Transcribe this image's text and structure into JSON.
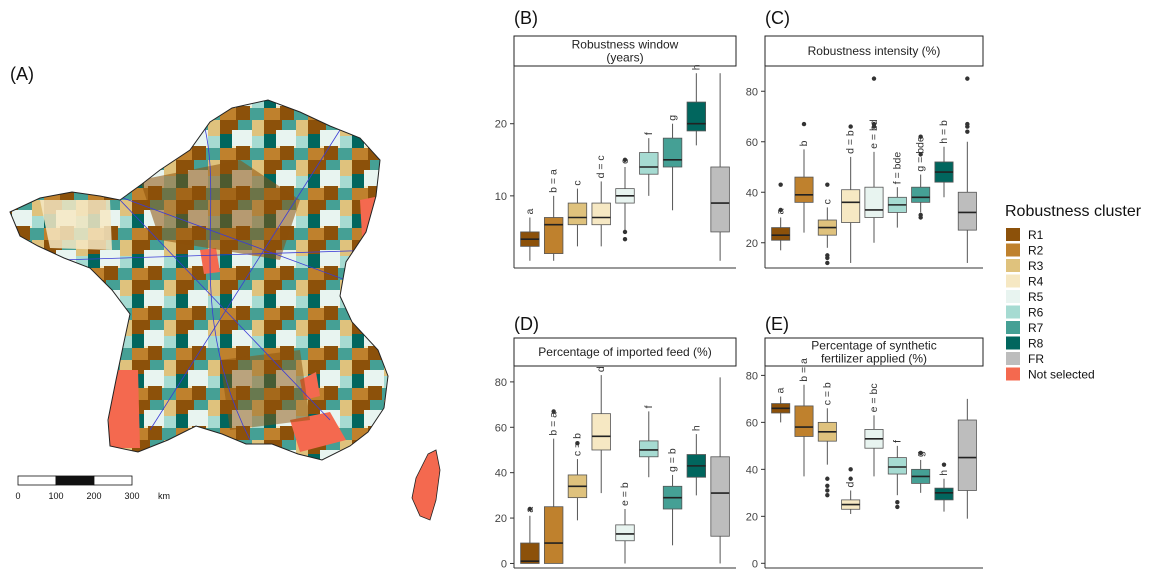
{
  "map_panel": {
    "letter": "(A)",
    "scale_ticks": [
      "0",
      "100",
      "200",
      "300"
    ],
    "scale_unit": "km"
  },
  "legend": {
    "title": "Robustness cluster",
    "items": [
      {
        "label": "R1",
        "color": "#8c510a"
      },
      {
        "label": "R2",
        "color": "#bf812d"
      },
      {
        "label": "R3",
        "color": "#dfc27d"
      },
      {
        "label": "R4",
        "color": "#f6e8c3"
      },
      {
        "label": "R5",
        "color": "#e8f4f0"
      },
      {
        "label": "R6",
        "color": "#a6dbd2"
      },
      {
        "label": "R7",
        "color": "#45a095"
      },
      {
        "label": "R8",
        "color": "#01665e"
      },
      {
        "label": "FR",
        "color": "#bdbdbd"
      },
      {
        "label": "Not selected",
        "color": "#f4694f"
      }
    ]
  },
  "chart_data": [
    {
      "type": "box",
      "panel": "(B)",
      "title_lines": [
        "Robustness window",
        "(years)"
      ],
      "ylim": [
        0,
        28
      ],
      "yticks": [
        10,
        20
      ],
      "categories": [
        "R1",
        "R2",
        "R3",
        "R4",
        "R5",
        "R6",
        "R7",
        "R8",
        "FR"
      ],
      "labels": [
        "a",
        "b = a",
        "c",
        "d = c",
        "e",
        "f",
        "g",
        "h",
        ""
      ],
      "boxes": [
        {
          "min": 1,
          "q1": 3,
          "median": 4,
          "q3": 5,
          "max": 7,
          "outliers": []
        },
        {
          "min": 1,
          "q1": 2,
          "median": 6,
          "q3": 7,
          "max": 10,
          "outliers": []
        },
        {
          "min": 3,
          "q1": 6,
          "median": 7,
          "q3": 9,
          "max": 11,
          "outliers": []
        },
        {
          "min": 3,
          "q1": 6,
          "median": 7,
          "q3": 9,
          "max": 12,
          "outliers": []
        },
        {
          "min": 5,
          "q1": 9,
          "median": 10,
          "q3": 11,
          "max": 14,
          "outliers": [
            4,
            5,
            15
          ]
        },
        {
          "min": 10,
          "q1": 13,
          "median": 14,
          "q3": 16,
          "max": 18,
          "outliers": []
        },
        {
          "min": 8,
          "q1": 14,
          "median": 15,
          "q3": 18,
          "max": 20,
          "outliers": []
        },
        {
          "min": 17,
          "q1": 19,
          "median": 20,
          "q3": 23,
          "max": 27,
          "outliers": []
        },
        {
          "min": 1,
          "q1": 5,
          "median": 9,
          "q3": 14,
          "max": 27,
          "outliers": []
        }
      ]
    },
    {
      "type": "box",
      "panel": "(C)",
      "title_lines": [
        "Robustness intensity (%)"
      ],
      "ylim": [
        10,
        90
      ],
      "yticks": [
        20,
        40,
        60,
        80
      ],
      "categories": [
        "R1",
        "R2",
        "R3",
        "R4",
        "R5",
        "R6",
        "R7",
        "R8",
        "FR"
      ],
      "labels": [
        "a",
        "b",
        "c",
        "d = b",
        "e = bd",
        "f = bde",
        "g = bde",
        "h = b",
        ""
      ],
      "boxes": [
        {
          "min": 17,
          "q1": 21,
          "median": 23,
          "q3": 26,
          "max": 30,
          "outliers": [
            33,
            43
          ]
        },
        {
          "min": 24,
          "q1": 36,
          "median": 39,
          "q3": 46,
          "max": 57,
          "outliers": [
            67
          ]
        },
        {
          "min": 18,
          "q1": 23,
          "median": 26,
          "q3": 29,
          "max": 34,
          "outliers": [
            12,
            14,
            15,
            43
          ]
        },
        {
          "min": 12,
          "q1": 28,
          "median": 36,
          "q3": 41,
          "max": 54,
          "outliers": [
            66
          ]
        },
        {
          "min": 20,
          "q1": 30,
          "median": 33,
          "q3": 42,
          "max": 56,
          "outliers": [
            66,
            67,
            85
          ]
        },
        {
          "min": 26,
          "q1": 32,
          "median": 35,
          "q3": 38,
          "max": 42,
          "outliers": []
        },
        {
          "min": 32,
          "q1": 36,
          "median": 38,
          "q3": 42,
          "max": 47,
          "outliers": [
            30,
            31,
            55,
            62
          ]
        },
        {
          "min": 38,
          "q1": 44,
          "median": 48,
          "q3": 52,
          "max": 58,
          "outliers": []
        },
        {
          "min": 12,
          "q1": 25,
          "median": 32,
          "q3": 40,
          "max": 60,
          "outliers": [
            64,
            66,
            67,
            85
          ]
        }
      ]
    },
    {
      "type": "box",
      "panel": "(D)",
      "title_lines": [
        "Percentage of imported feed (%)"
      ],
      "ylim": [
        -2,
        87
      ],
      "yticks": [
        0,
        20,
        40,
        60,
        80
      ],
      "categories": [
        "R1",
        "R2",
        "R3",
        "R4",
        "R5",
        "R6",
        "R7",
        "R8",
        "FR"
      ],
      "labels": [
        "a",
        "b = a",
        "c = b",
        "d",
        "e = b",
        "f",
        "g = b",
        "h",
        ""
      ],
      "boxes": [
        {
          "min": 0,
          "q1": 0,
          "median": 1,
          "q3": 9,
          "max": 21,
          "outliers": [
            24
          ]
        },
        {
          "min": 0,
          "q1": 0,
          "median": 9,
          "q3": 25,
          "max": 55,
          "outliers": [
            67
          ]
        },
        {
          "min": 19,
          "q1": 29,
          "median": 34,
          "q3": 39,
          "max": 46,
          "outliers": [
            53
          ]
        },
        {
          "min": 31,
          "q1": 50,
          "median": 56,
          "q3": 66,
          "max": 83,
          "outliers": []
        },
        {
          "min": 0,
          "q1": 10,
          "median": 13,
          "q3": 17,
          "max": 24,
          "outliers": []
        },
        {
          "min": 38,
          "q1": 47,
          "median": 50,
          "q3": 54,
          "max": 67,
          "outliers": []
        },
        {
          "min": 8,
          "q1": 24,
          "median": 29,
          "q3": 34,
          "max": 39,
          "outliers": []
        },
        {
          "min": 30,
          "q1": 38,
          "median": 43,
          "q3": 48,
          "max": 57,
          "outliers": []
        },
        {
          "min": 0,
          "q1": 12,
          "median": 31,
          "q3": 47,
          "max": 82,
          "outliers": []
        }
      ]
    },
    {
      "type": "box",
      "panel": "(E)",
      "title_lines": [
        "Percentage of synthetic",
        "fertilizer applied (%)"
      ],
      "ylim": [
        -2,
        84
      ],
      "yticks": [
        0,
        20,
        40,
        60,
        80
      ],
      "categories": [
        "R1",
        "R2",
        "R3",
        "R4",
        "R5",
        "R6",
        "R7",
        "R8",
        "FR"
      ],
      "labels": [
        "a",
        "b = a",
        "c = b",
        "d",
        "e = bc",
        "f",
        "g",
        "h",
        ""
      ],
      "boxes": [
        {
          "min": 60,
          "q1": 64,
          "median": 66,
          "q3": 68,
          "max": 71,
          "outliers": []
        },
        {
          "min": 37,
          "q1": 54,
          "median": 58,
          "q3": 67,
          "max": 76,
          "outliers": []
        },
        {
          "min": 42,
          "q1": 52,
          "median": 56,
          "q3": 60,
          "max": 66,
          "outliers": [
            29,
            31,
            33,
            36
          ]
        },
        {
          "min": 21,
          "q1": 23,
          "median": 25,
          "q3": 27,
          "max": 31,
          "outliers": [
            36,
            40
          ]
        },
        {
          "min": 37,
          "q1": 49,
          "median": 53,
          "q3": 57,
          "max": 63,
          "outliers": []
        },
        {
          "min": 29,
          "q1": 38,
          "median": 41,
          "q3": 45,
          "max": 50,
          "outliers": [
            24,
            26
          ]
        },
        {
          "min": 30,
          "q1": 34,
          "median": 37,
          "q3": 40,
          "max": 44,
          "outliers": [
            47
          ]
        },
        {
          "min": 22,
          "q1": 27,
          "median": 30,
          "q3": 32,
          "max": 36,
          "outliers": [
            42
          ]
        },
        {
          "min": 19,
          "q1": 31,
          "median": 45,
          "q3": 61,
          "max": 70,
          "outliers": []
        }
      ]
    }
  ]
}
